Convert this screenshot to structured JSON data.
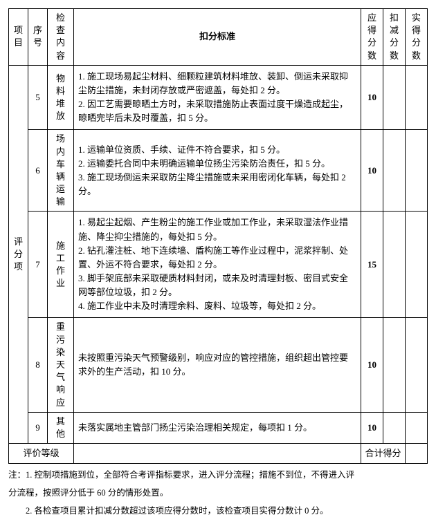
{
  "header": {
    "col_project": "项目",
    "col_seq": "序号",
    "col_check": "检查内容",
    "col_criteria": "扣分标准",
    "col_should": "应得分数",
    "col_deduct": "扣减分数",
    "col_actual": "实得分数"
  },
  "section_label": "评分项",
  "rows": [
    {
      "seq": "5",
      "check": "物料堆放",
      "criteria": "1. 施工现场易起尘材料、细颗粒建筑材料堆放、装卸、倒运未采取抑尘防尘措施，未封闭存放或严密遮盖，每处扣 2 分。\n2. 因工艺需要晾晒土方时，未采取措施防止表面过度干燥造成起尘，晾晒完毕后未及时覆盖，扣 5 分。",
      "should": "10"
    },
    {
      "seq": "6",
      "check": "场内车辆运输",
      "criteria": "1. 运输单位资质、手续、证件不符合要求，扣 5 分。\n2. 运输委托合同中未明确运输单位扬尘污染防治责任，扣 5 分。\n3. 施工现场倒运未采取防尘降尘措施或未采用密闭化车辆，每处扣 2 分。",
      "should": "10"
    },
    {
      "seq": "7",
      "check": "施工作业",
      "criteria": "1. 易起尘起烟、产生粉尘的施工作业或加工作业，未采取湿法作业措施、降尘抑尘措施的，每处扣 5 分。\n2. 钻孔灌注桩、地下连续墙、盾构施工等作业过程中，泥浆拌制、处置、外运不符合要求，每处扣 2 分。\n3. 脚手架底部未采取硬质材料封闭，或未及时清理封板、密目式安全网等部位垃圾，扣 2 分。\n4. 施工作业中未及时清理余料、废料、垃圾等，每处扣 2 分。",
      "should": "15"
    },
    {
      "seq": "8",
      "check": "重污染天气响应",
      "criteria": "未按照重污染天气预警级别，响应对应的管控措施，组织超出管控要求外的生产活动，扣 10 分。",
      "should": "10"
    },
    {
      "seq": "9",
      "check": "其他",
      "criteria": "未落实属地主管部门扬尘污染治理相关规定，每项扣 1 分。",
      "should": "10"
    }
  ],
  "footer": {
    "rating_label": "评价等级",
    "total_label": "合计得分"
  },
  "notes": {
    "n1": "注：1. 控制项措施到位，全部符合考评指标要求，进入评分流程；措施不到位，不得进入评",
    "n1b": "分流程，按照评分低于 60 分的情形处置。",
    "n2": "　　2. 各检查项目累计扣减分数超过该项应得分数时，该检查项目实得分数计 0 分。"
  },
  "style": {
    "col_widths": {
      "project": 24,
      "seq": 26,
      "check": 34,
      "criteria": 372,
      "should": 30,
      "deduct": 30,
      "actual": 30
    }
  }
}
